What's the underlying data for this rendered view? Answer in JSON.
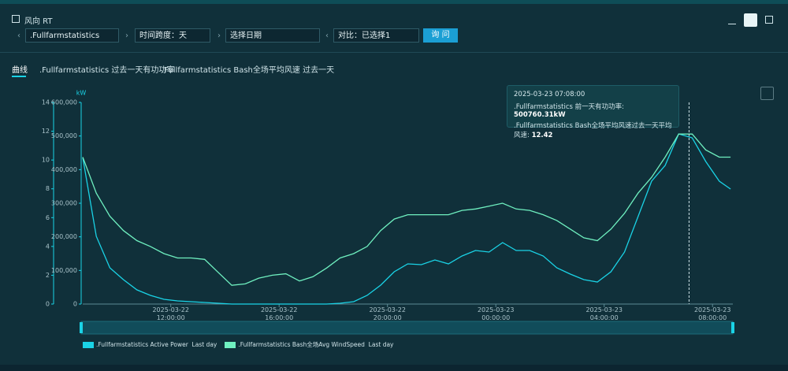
{
  "header": {
    "title": "风向 RT",
    "controls": {
      "station": ".Fullfarmstatistics",
      "span": "时间跨度：天",
      "date": "选择日期",
      "compare": "对比：已选择1",
      "query": "询 问"
    }
  },
  "tabs": [
    "曲线",
    ".Fullfarmstatistics 过去一天有功功率",
    ".Fullfarmstatistics Bash全场平均风速 过去一天"
  ],
  "chart_data": {
    "type": "line",
    "x": [
      "2025-03-22 08:45:00",
      "2025-03-22 09:15:00",
      "2025-03-22 09:45:00",
      "2025-03-22 10:15:00",
      "2025-03-22 10:45:00",
      "2025-03-22 11:15:00",
      "2025-03-22 11:45:00",
      "2025-03-22 12:15:00",
      "2025-03-22 12:45:00",
      "2025-03-22 13:15:00",
      "2025-03-22 13:45:00",
      "2025-03-22 14:15:00",
      "2025-03-22 14:45:00",
      "2025-03-22 15:15:00",
      "2025-03-22 15:45:00",
      "2025-03-22 16:15:00",
      "2025-03-22 16:45:00",
      "2025-03-22 17:15:00",
      "2025-03-22 17:45:00",
      "2025-03-22 18:15:00",
      "2025-03-22 18:45:00",
      "2025-03-22 19:15:00",
      "2025-03-22 19:45:00",
      "2025-03-22 20:15:00",
      "2025-03-22 20:45:00",
      "2025-03-22 21:15:00",
      "2025-03-22 21:45:00",
      "2025-03-22 22:15:00",
      "2025-03-22 22:45:00",
      "2025-03-22 23:15:00",
      "2025-03-22 23:45:00",
      "2025-03-23 00:15:00",
      "2025-03-23 00:45:00",
      "2025-03-23 01:15:00",
      "2025-03-23 01:45:00",
      "2025-03-23 02:15:00",
      "2025-03-23 02:45:00",
      "2025-03-23 03:15:00",
      "2025-03-23 03:45:00",
      "2025-03-23 04:15:00",
      "2025-03-23 04:45:00",
      "2025-03-23 05:15:00",
      "2025-03-23 05:45:00",
      "2025-03-23 06:15:00",
      "2025-03-23 06:45:00",
      "2025-03-23 07:15:00",
      "2025-03-23 07:45:00",
      "2025-03-23 08:15:00",
      "2025-03-23 08:40:00"
    ],
    "xlim": [
      "2025-03-22 08:45:00",
      "2025-03-23 08:45:00"
    ],
    "xticks": [
      "2025-03-22 12:00:00",
      "2025-03-22 16:00:00",
      "2025-03-22 20:00:00",
      "2025-03-23 00:00:00",
      "2025-03-23 04:00:00",
      "2025-03-23 08:00:00"
    ],
    "ylim": [
      0,
      14
    ],
    "yticks": [
      0,
      2,
      4,
      6,
      8,
      10,
      12,
      14
    ],
    "y2label": "kW",
    "y2lim": [
      0,
      600000
    ],
    "y2ticks": [
      0,
      {
        "value": 100000,
        "label": "100,000"
      },
      {
        "value": 200000,
        "label": "200,000"
      },
      {
        "value": 300000,
        "label": "300,000"
      },
      {
        "value": 400000,
        "label": "400,000"
      },
      {
        "value": 500000,
        "label": "500,000"
      },
      {
        "value": 600000,
        "label": "600,000"
      }
    ],
    "series": [
      {
        "name": ".Fullfarmstatistics Active Power  Last day",
        "color": "#1ad3e6",
        "axis": "y2",
        "values": [
          436000,
          201600,
          107800,
          72700,
          42200,
          25800,
          14000,
          9400,
          7000,
          4700,
          2300,
          0,
          0,
          0,
          0,
          0,
          0,
          0,
          0,
          2300,
          7000,
          25800,
          56300,
          96100,
          119500,
          117200,
          131300,
          119500,
          143000,
          159400,
          154700,
          182800,
          159400,
          159400,
          143000,
          107800,
          89100,
          72700,
          65600,
          96100,
          154700,
          260200,
          365700,
          412500,
          506300,
          494600,
          424300,
          365700,
          342200
        ]
      },
      {
        "name": ".Fullfarmstatistics Bash全场Avg WindSpeed  Last day",
        "color": "#6ff0c0",
        "values": [
          10.2,
          7.7,
          6.1,
          5.1,
          4.4,
          4.0,
          3.5,
          3.2,
          3.2,
          3.1,
          2.2,
          1.3,
          1.4,
          1.8,
          2.0,
          2.1,
          1.6,
          1.9,
          2.5,
          3.2,
          3.5,
          4.0,
          5.1,
          5.9,
          6.2,
          6.2,
          6.2,
          6.2,
          6.5,
          6.6,
          6.8,
          7.0,
          6.6,
          6.5,
          6.2,
          5.8,
          5.2,
          4.6,
          4.4,
          5.2,
          6.3,
          7.7,
          8.8,
          10.2,
          11.8,
          11.8,
          10.7,
          10.2,
          10.2
        ]
      }
    ],
    "tooltip": {
      "x": "2025-03-23 07:08:00",
      "rows": [
        {
          "label": ".Fullfarmstatistics 前一天有功功率:",
          "value": 500760.31,
          "value_label": "500760.31kW"
        },
        {
          "label": ".Fullfarmstatistics Bash全场平均风速过去一天平均风速:",
          "value": 12.42
        }
      ]
    }
  }
}
